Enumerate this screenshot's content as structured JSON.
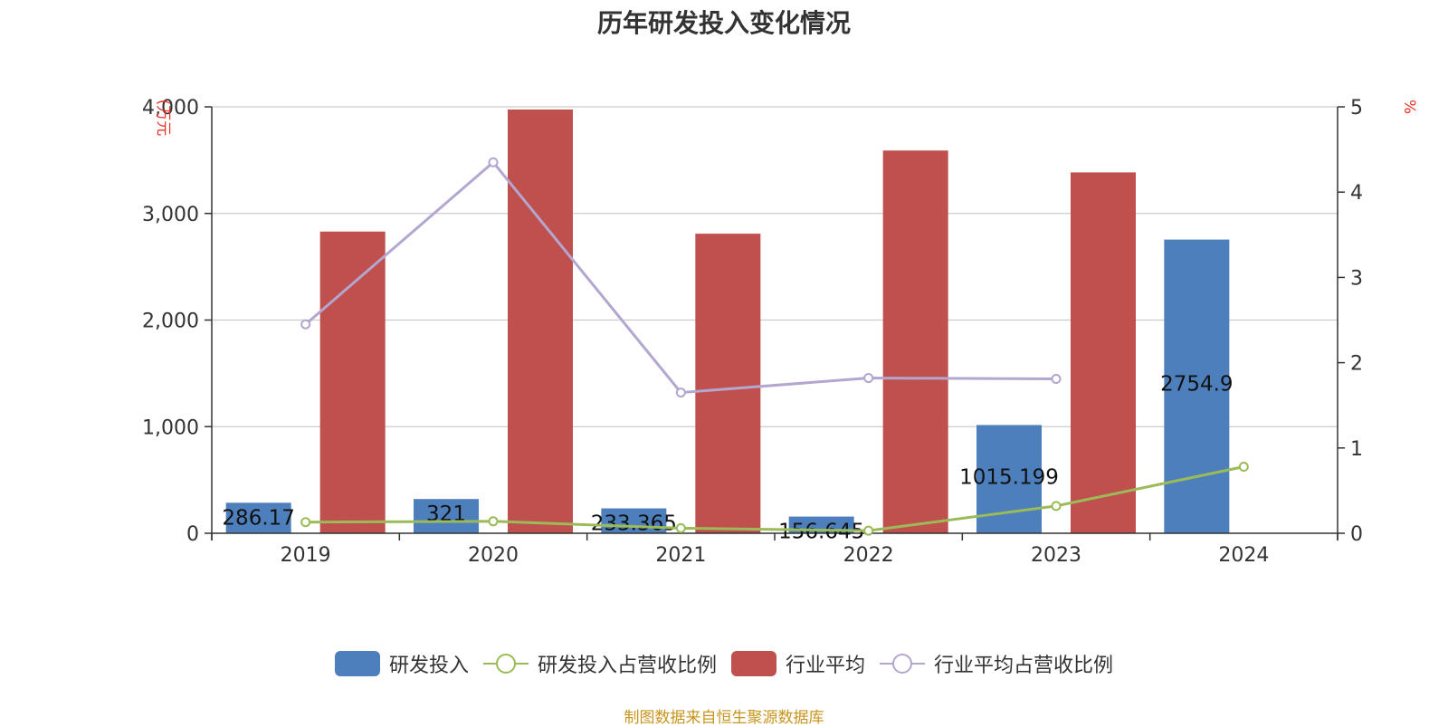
{
  "chart_data": {
    "type": "bar",
    "title": "历年研发投入变化情况",
    "categories": [
      "2019",
      "2020",
      "2021",
      "2022",
      "2023",
      "2024"
    ],
    "left_axis": {
      "label": "(万元",
      "ylim": [
        0,
        4000
      ],
      "ticks": [
        "0",
        "1,000",
        "2,000",
        "3,000",
        "4,000"
      ],
      "tick_values": [
        0,
        1000,
        2000,
        3000,
        4000
      ]
    },
    "right_axis": {
      "label": "%",
      "ylim": [
        0,
        5
      ],
      "ticks": [
        "0",
        "1",
        "2",
        "3",
        "4",
        "5"
      ],
      "tick_values": [
        0,
        1,
        2,
        3,
        4,
        5
      ]
    },
    "series": [
      {
        "name": "研发投入",
        "kind": "bar",
        "axis": "left",
        "color": "#4e7fbd",
        "values": [
          286.17,
          321,
          233.365,
          156.645,
          1015.199,
          2754.9
        ],
        "labels": [
          "286.17",
          "321",
          "233.365",
          "156.645",
          "1015.199",
          "2754.9"
        ]
      },
      {
        "name": "研发投入占营收比例",
        "kind": "line",
        "axis": "right",
        "color": "#9bbb59",
        "values": [
          0.13,
          0.14,
          0.06,
          0.03,
          0.32,
          0.78
        ]
      },
      {
        "name": "行业平均",
        "kind": "bar",
        "axis": "left",
        "color": "#c0504d",
        "values": [
          2830,
          3975,
          2810,
          3590,
          3385,
          null
        ]
      },
      {
        "name": "行业平均占营收比例",
        "kind": "line",
        "axis": "right",
        "color": "#b3a6cf",
        "values": [
          2.45,
          4.35,
          1.65,
          1.82,
          1.81,
          null
        ]
      }
    ],
    "grid": true,
    "legend_position": "bottom"
  },
  "footer": {
    "source": "制图数据来自恒生聚源数据库"
  }
}
